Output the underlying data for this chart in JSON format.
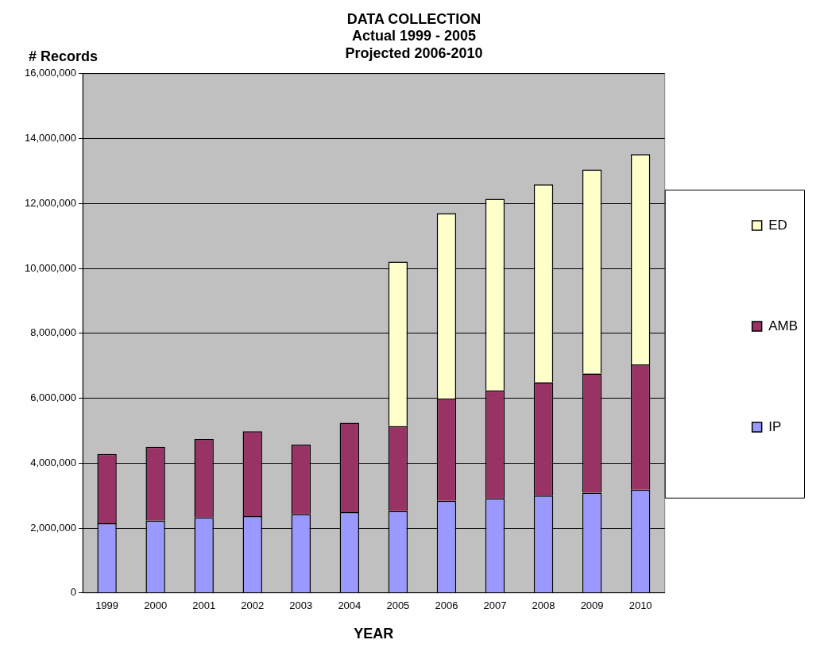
{
  "chart_data": {
    "type": "bar",
    "stacked": true,
    "title": "DATA COLLECTION",
    "subtitle": "Actual 1999 - 2005\nProjected 2006-2010",
    "xlabel": "YEAR",
    "ylabel": "# Records",
    "categories": [
      "1999",
      "2000",
      "2001",
      "2002",
      "2003",
      "2004",
      "2005",
      "2006",
      "2007",
      "2008",
      "2009",
      "2010"
    ],
    "series": [
      {
        "name": "IP",
        "color": "#9999ff",
        "values": [
          2150000,
          2230000,
          2330000,
          2370000,
          2430000,
          2490000,
          2520000,
          2840000,
          2910000,
          3000000,
          3090000,
          3180000
        ]
      },
      {
        "name": "AMB",
        "color": "#993366",
        "values": [
          2130000,
          2270000,
          2410000,
          2610000,
          2140000,
          2750000,
          2620000,
          3150000,
          3330000,
          3490000,
          3670000,
          3860000
        ]
      },
      {
        "name": "ED",
        "color": "#ffffcc",
        "values": [
          null,
          null,
          null,
          null,
          null,
          null,
          5070000,
          5710000,
          5900000,
          6100000,
          6290000,
          6480000
        ]
      }
    ],
    "ylim": [
      0,
      16000000
    ],
    "yticks": [
      0,
      {
        "value": 2000000,
        "label": "2,000,000"
      },
      {
        "value": 4000000,
        "label": "4,000,000"
      },
      {
        "value": 6000000,
        "label": "6,000,000"
      },
      {
        "value": 8000000,
        "label": "8,000,000"
      },
      {
        "value": 10000000,
        "label": "10,000,000"
      },
      {
        "value": 12000000,
        "label": "12,000,000"
      },
      {
        "value": 14000000,
        "label": "14,000,000"
      },
      {
        "value": 16000000,
        "label": "16,000,000"
      }
    ],
    "grid": "y",
    "legend": "right"
  }
}
